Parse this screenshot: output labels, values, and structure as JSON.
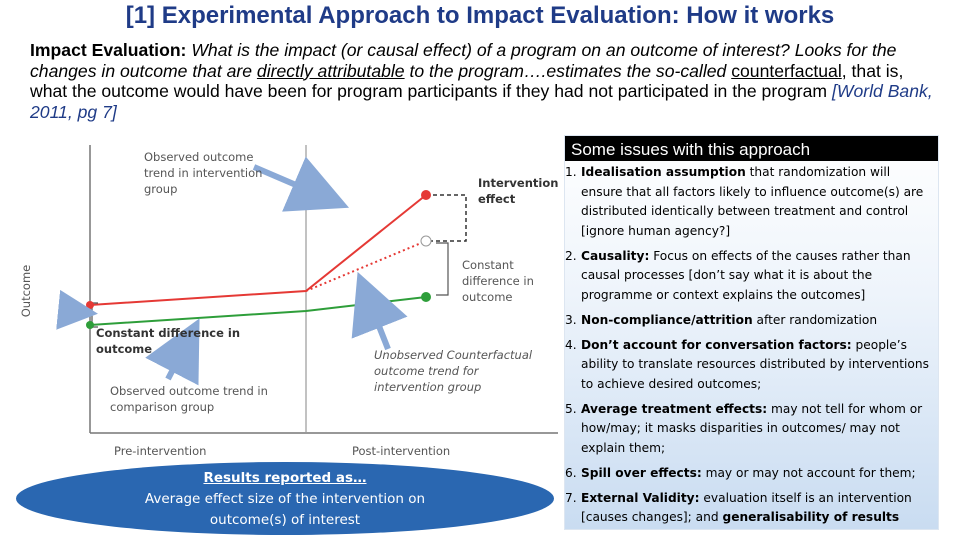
{
  "title": "[1] Experimental Approach to Impact Evaluation: How it works",
  "intro": {
    "lead": "Impact Evaluation:",
    "question": "What is the impact (or causal effect) of a program on an outcome of interest?",
    "line2_part1": "Looks for the changes in outcome that are",
    "line2_underline": "directly attributable",
    "line2_part2": "to the program….estimates the so-called",
    "counterfactual": "counterfactual",
    "line3_part2": ", that is, what the outcome would have been for program participants if they had not participated in the program",
    "citation_open": "[",
    "citation": "World Bank, 2011, pg 7",
    "citation_close": "]"
  },
  "diagram": {
    "y_label": "Outcome",
    "x_label_pre": "Pre-intervention",
    "x_label_post": "Post-intervention",
    "observed_intervention": [
      "Observed outcome",
      "trend in intervention",
      "group"
    ],
    "intervention_effect": [
      "Intervention",
      "effect"
    ],
    "constant_diff_right": [
      "Constant",
      "difference in",
      "outcome"
    ],
    "constant_diff_left": [
      "Constant difference in",
      "outcome"
    ],
    "unobserved_counterfactual": [
      "Unobserved Counterfactual",
      "outcome trend for",
      "intervention group"
    ],
    "observed_comparison": [
      "Observed outcome trend in",
      "comparison group"
    ],
    "colors": {
      "intervention": "#e53935",
      "comparison": "#2e9e3a",
      "arrow": "#8aa9d6"
    }
  },
  "results": {
    "heading": "Results reported as…",
    "line1": "Average effect size of the intervention on",
    "line2": "outcome(s) of interest"
  },
  "issues": {
    "heading": "Some issues with this approach",
    "items": [
      {
        "num": "1.",
        "bold": "Idealisation assumption",
        "text": " that randomization will ensure that all factors likely to influence outcome(s) are distributed identically between treatment and control [ignore human agency?]"
      },
      {
        "num": "2.",
        "bold": "Causality:",
        "text": " Focus on effects of the causes rather than causal processes [don’t say what it is about the programme or context explains the outcomes]"
      },
      {
        "num": "3.",
        "bold": "Non-compliance/attrition",
        "text": " after randomization"
      },
      {
        "num": "4.",
        "bold": "Don’t account for conversation factors:",
        "text": " people’s ability to translate resources distributed by interventions to achieve desired outcomes;"
      },
      {
        "num": "5.",
        "bold": "Average treatment effects:",
        "text": " may not tell for whom or how/may; it masks disparities in outcomes/ may not explain them;"
      },
      {
        "num": "6.",
        "bold": "Spill over effects:",
        "text": " may or may not account for them;"
      },
      {
        "num": "7.",
        "bold": "External Validity:",
        "text": " evaluation itself is an intervention [causes changes]; and ",
        "bold2": "generalisability of results"
      }
    ]
  }
}
